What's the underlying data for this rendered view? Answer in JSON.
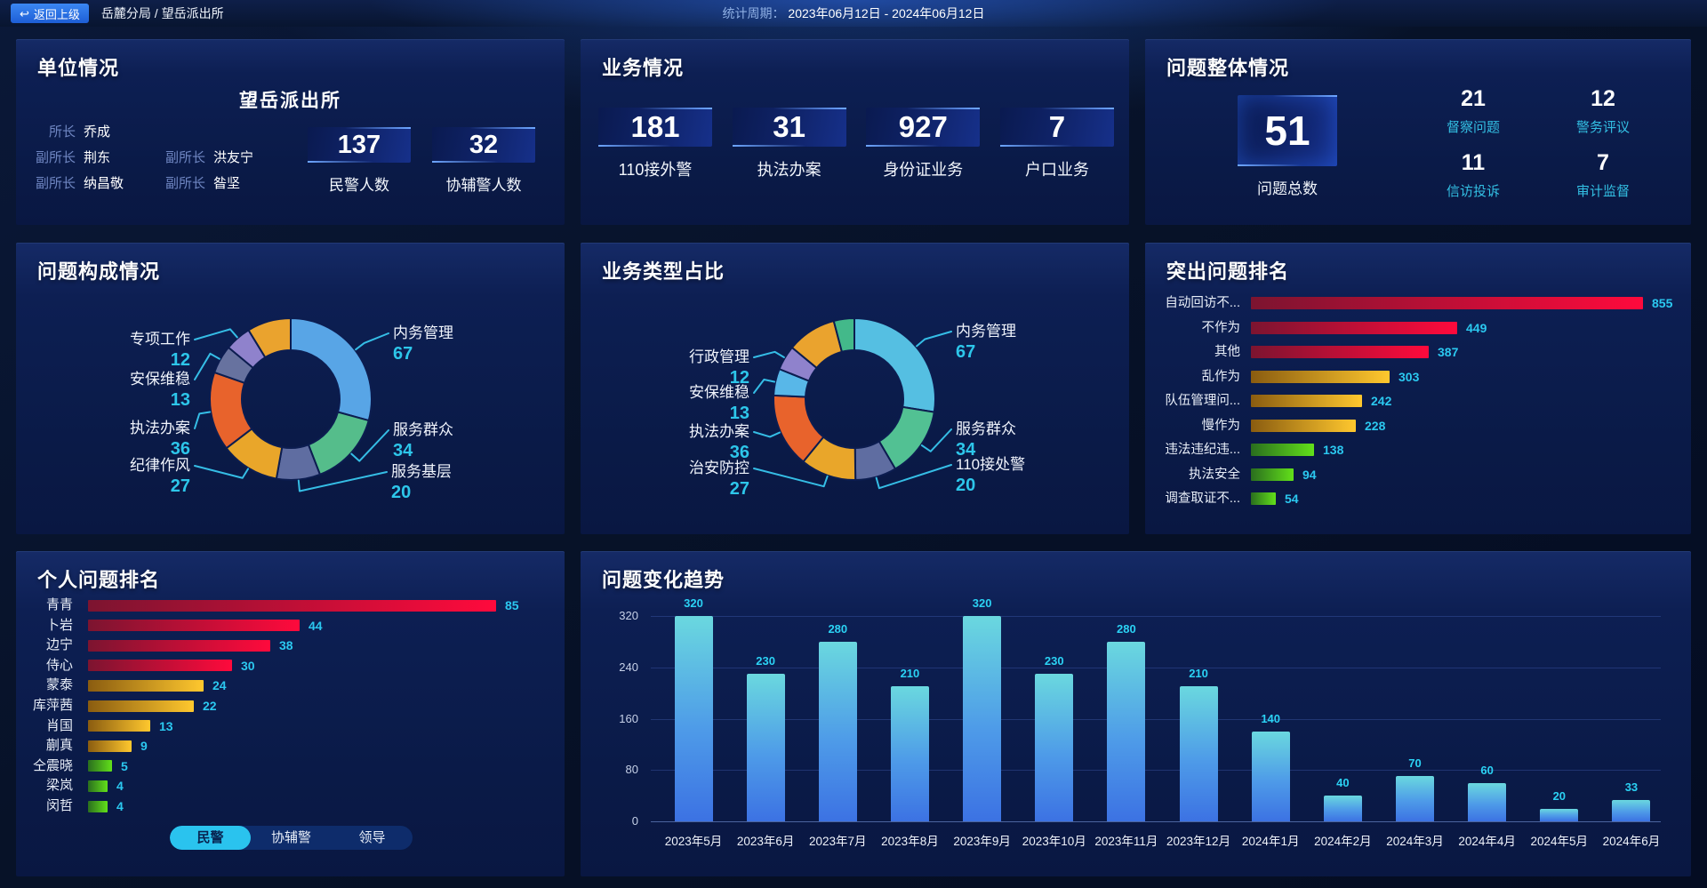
{
  "topbar": {
    "back_label": "返回上级",
    "breadcrumb": "岳麓分局 / 望岳派出所",
    "period_label": "统计周期：",
    "period_value": "2023年06月12日 - 2024年06月12日"
  },
  "unit": {
    "title": "单位情况",
    "station_name": "望岳派出所",
    "roles": [
      {
        "role": "所长",
        "name": "乔成"
      },
      {
        "role": "副所长",
        "name": "荆东"
      },
      {
        "role": "副所长",
        "name": "洪友宁"
      },
      {
        "role": "副所长",
        "name": "纳昌敬"
      },
      {
        "role": "副所长",
        "name": "昝坚"
      }
    ],
    "stats": [
      {
        "value": "137",
        "label": "民警人数"
      },
      {
        "value": "32",
        "label": "协辅警人数"
      }
    ]
  },
  "business": {
    "title": "业务情况",
    "stats": [
      {
        "value": "181",
        "label": "110接外警"
      },
      {
        "value": "31",
        "label": "执法办案"
      },
      {
        "value": "927",
        "label": "身份证业务"
      },
      {
        "value": "7",
        "label": "户口业务"
      }
    ]
  },
  "problems": {
    "title": "问题整体情况",
    "total": {
      "value": "51",
      "label": "问题总数"
    },
    "stats": [
      {
        "value": "21",
        "label": "督察问题"
      },
      {
        "value": "12",
        "label": "警务评议"
      },
      {
        "value": "11",
        "label": "信访投诉"
      },
      {
        "value": "7",
        "label": "审计监督"
      }
    ]
  },
  "chart_data": [
    {
      "type": "pie",
      "shape": "donut",
      "title": "问题构成情况",
      "series": [
        {
          "name": "内务管理",
          "value": 67,
          "color": "#58a5e6"
        },
        {
          "name": "服务群众",
          "value": 34,
          "color": "#55bd8b"
        },
        {
          "name": "服务基层",
          "value": 20,
          "color": "#5f6da1"
        },
        {
          "name": "纪律作风",
          "value": 27,
          "color": "#e9a62a"
        },
        {
          "name": "执法办案",
          "value": 36,
          "color": "#e8632c"
        },
        {
          "name": "安保维稳",
          "value": 13,
          "color": "#67729f"
        },
        {
          "name": "专项工作",
          "value": 12,
          "color": "#8f82cc"
        },
        {
          "name": "",
          "value": 20,
          "color": "#eaa32e",
          "estimated_unlabeled": true
        }
      ]
    },
    {
      "type": "pie",
      "shape": "donut",
      "title": "业务类型占比",
      "series": [
        {
          "name": "内务管理",
          "value": 67,
          "color": "#55bfe2"
        },
        {
          "name": "服务群众",
          "value": 34,
          "color": "#52c193"
        },
        {
          "name": "110接处警",
          "value": 20,
          "color": "#5f6da1"
        },
        {
          "name": "治安防控",
          "value": 27,
          "color": "#e9a62a"
        },
        {
          "name": "执法办案",
          "value": 36,
          "color": "#e8632c"
        },
        {
          "name": "安保维稳",
          "value": 13,
          "color": "#58b7e8"
        },
        {
          "name": "行政管理",
          "value": 12,
          "color": "#8f82cc"
        },
        {
          "name": "",
          "value": 24,
          "color": "#eaa32e",
          "estimated_unlabeled": true
        },
        {
          "name": "",
          "value": 10,
          "color": "#43b98a",
          "estimated_unlabeled": true
        }
      ]
    },
    {
      "type": "bar",
      "orientation": "horizontal",
      "title": "突出问题排名",
      "categories": [
        "自动回访不...",
        "不作为",
        "其他",
        "乱作为",
        "队伍管理问...",
        "慢作为",
        "违法违纪违...",
        "执法安全",
        "调查取证不..."
      ],
      "values": [
        855,
        449,
        387,
        303,
        242,
        228,
        138,
        94,
        54
      ],
      "palette": [
        "red",
        "red",
        "red",
        "gold",
        "gold",
        "gold",
        "green",
        "green",
        "green"
      ]
    },
    {
      "type": "bar",
      "orientation": "horizontal",
      "title": "个人问题排名",
      "categories": [
        "青青",
        "卜岩",
        "边宁",
        "侍心",
        "蒙泰",
        "库萍茜",
        "肖国",
        "蒯真",
        "仝震晓",
        "梁岚",
        "闵哲"
      ],
      "values": [
        85,
        44,
        38,
        30,
        24,
        22,
        13,
        9,
        5,
        4,
        4
      ],
      "palette": [
        "red",
        "red",
        "red",
        "red",
        "gold",
        "gold",
        "gold",
        "gold",
        "green",
        "green",
        "green"
      ],
      "tabs": [
        "民警",
        "协辅警",
        "领导"
      ],
      "active_tab": "民警"
    },
    {
      "type": "bar",
      "orientation": "vertical",
      "title": "问题变化趋势",
      "categories": [
        "2023年5月",
        "2023年6月",
        "2023年7月",
        "2023年8月",
        "2023年9月",
        "2023年10月",
        "2023年11月",
        "2023年12月",
        "2024年1月",
        "2024年2月",
        "2024年3月",
        "2024年4月",
        "2024年5月",
        "2024年6月"
      ],
      "values": [
        320,
        230,
        280,
        210,
        320,
        230,
        280,
        210,
        140,
        40,
        70,
        60,
        20,
        33
      ],
      "yticks": [
        0,
        80,
        160,
        240,
        320
      ],
      "ylim": [
        0,
        340
      ],
      "grid": true,
      "legend": false
    }
  ],
  "colors": {
    "accent_cyan": "#2dc6ea",
    "bar_red_gradient": [
      "#7c1430",
      "#ff0a3c"
    ],
    "bar_gold_gradient": [
      "#8a5c10",
      "#ffc82e"
    ],
    "bar_green_gradient": [
      "#2a6e1e",
      "#62e01a"
    ],
    "trend_bar_gradient": [
      "#6ad8df",
      "#3c72e3"
    ],
    "tab_active_bg": "#2ac3ee",
    "back_button_bg": "#1f6be0"
  }
}
